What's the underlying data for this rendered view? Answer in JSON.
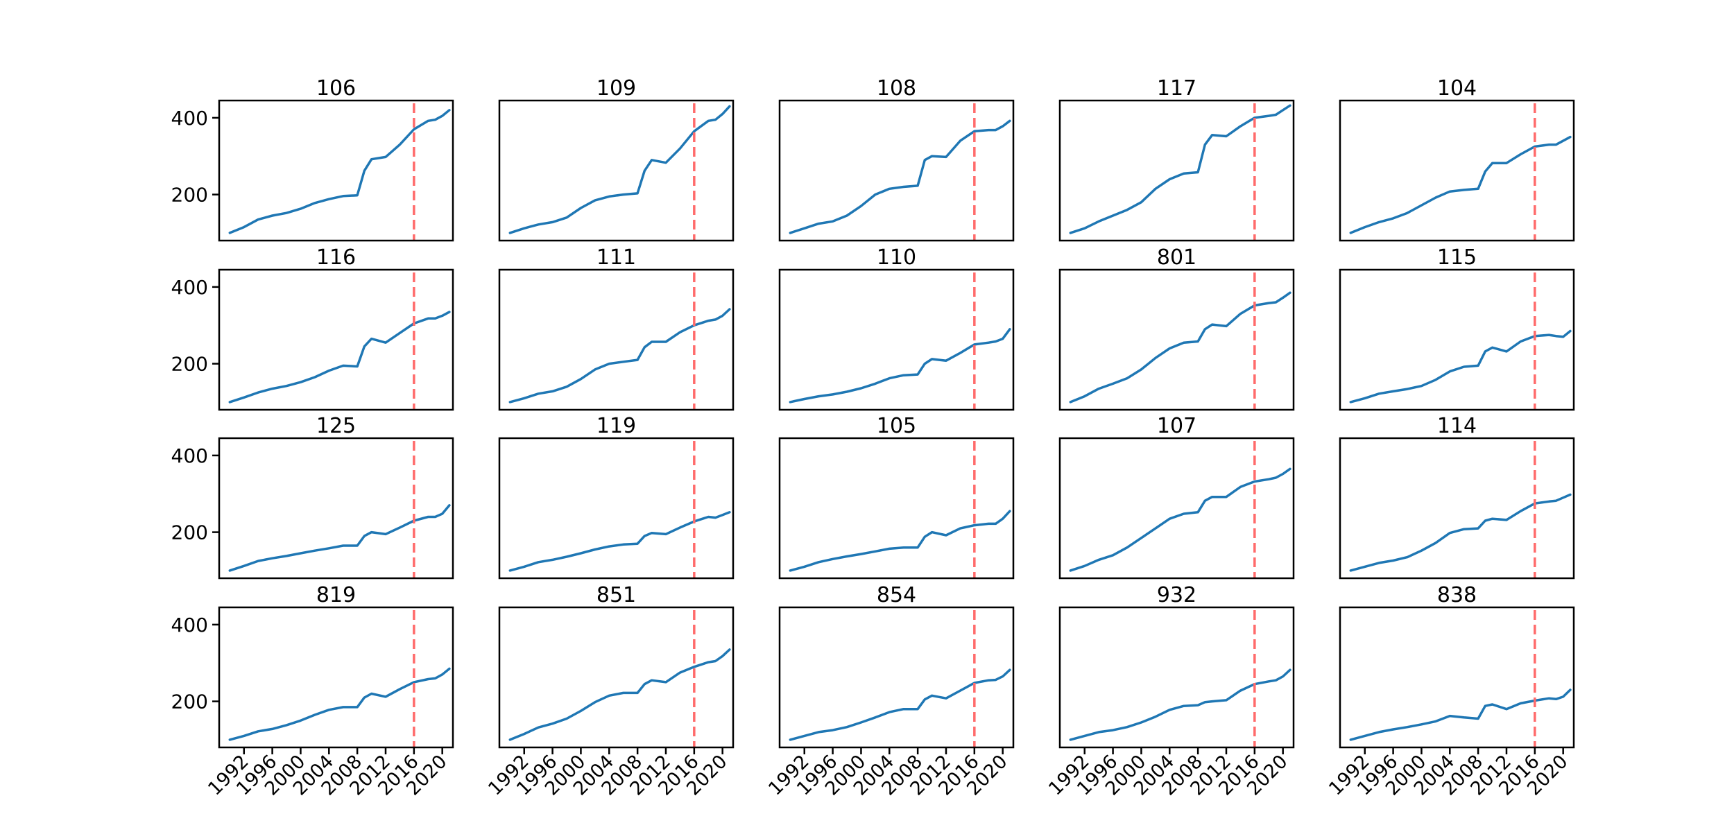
{
  "chart_data": {
    "type": "line",
    "layout": "small-multiples",
    "rows": 4,
    "cols": 5,
    "x_ticks": [
      1992,
      1996,
      2000,
      2004,
      2008,
      2012,
      2016,
      2020
    ],
    "y_ticks": [
      200,
      400
    ],
    "xlim": [
      1988.5,
      2021.5
    ],
    "ylim": [
      80,
      445
    ],
    "vline_x": 2016,
    "line_color": "#1f77b4",
    "vline_color": "#ff6b6b",
    "panels": [
      {
        "title": "106",
        "x": [
          1990,
          1992,
          1994,
          1996,
          1998,
          2000,
          2002,
          2004,
          2006,
          2008,
          2009,
          2010,
          2012,
          2014,
          2016,
          2018,
          2019,
          2020,
          2021
        ],
        "values": [
          100,
          115,
          135,
          145,
          152,
          163,
          178,
          188,
          196,
          198,
          262,
          292,
          298,
          330,
          370,
          392,
          395,
          405,
          420
        ]
      },
      {
        "title": "109",
        "x": [
          1990,
          1992,
          1994,
          1996,
          1998,
          2000,
          2002,
          2004,
          2006,
          2008,
          2009,
          2010,
          2012,
          2014,
          2016,
          2018,
          2019,
          2020,
          2021
        ],
        "values": [
          100,
          112,
          122,
          128,
          140,
          165,
          185,
          195,
          200,
          203,
          262,
          290,
          283,
          320,
          365,
          392,
          395,
          410,
          430
        ]
      },
      {
        "title": "108",
        "x": [
          1990,
          1992,
          1994,
          1996,
          1998,
          2000,
          2002,
          2004,
          2006,
          2008,
          2009,
          2010,
          2012,
          2014,
          2016,
          2018,
          2019,
          2020,
          2021
        ],
        "values": [
          100,
          112,
          124,
          130,
          145,
          170,
          200,
          215,
          220,
          223,
          290,
          300,
          298,
          340,
          365,
          368,
          368,
          378,
          392
        ]
      },
      {
        "title": "117",
        "x": [
          1990,
          1992,
          1994,
          1996,
          1998,
          2000,
          2002,
          2004,
          2006,
          2008,
          2009,
          2010,
          2012,
          2014,
          2016,
          2018,
          2019,
          2020,
          2021
        ],
        "values": [
          100,
          112,
          130,
          145,
          160,
          180,
          215,
          240,
          255,
          258,
          330,
          355,
          352,
          378,
          400,
          405,
          408,
          420,
          432
        ]
      },
      {
        "title": "104",
        "x": [
          1990,
          1992,
          1994,
          1996,
          1998,
          2000,
          2002,
          2004,
          2006,
          2008,
          2009,
          2010,
          2012,
          2014,
          2016,
          2018,
          2019,
          2020,
          2021
        ],
        "values": [
          100,
          115,
          128,
          138,
          152,
          172,
          192,
          208,
          212,
          215,
          260,
          282,
          282,
          305,
          325,
          330,
          330,
          340,
          350
        ]
      },
      {
        "title": "116",
        "x": [
          1990,
          1992,
          1994,
          1996,
          1998,
          2000,
          2002,
          2004,
          2006,
          2008,
          2009,
          2010,
          2012,
          2014,
          2016,
          2018,
          2019,
          2020,
          2021
        ],
        "values": [
          100,
          112,
          125,
          135,
          142,
          152,
          165,
          182,
          195,
          193,
          245,
          265,
          255,
          280,
          305,
          318,
          318,
          325,
          335
        ]
      },
      {
        "title": "111",
        "x": [
          1990,
          1992,
          1994,
          1996,
          1998,
          2000,
          2002,
          2004,
          2006,
          2008,
          2009,
          2010,
          2012,
          2014,
          2016,
          2018,
          2019,
          2020,
          2021
        ],
        "values": [
          100,
          110,
          122,
          128,
          140,
          160,
          185,
          200,
          205,
          210,
          243,
          257,
          257,
          282,
          300,
          312,
          315,
          325,
          342
        ]
      },
      {
        "title": "110",
        "x": [
          1990,
          1992,
          1994,
          1996,
          1998,
          2000,
          2002,
          2004,
          2006,
          2008,
          2009,
          2010,
          2012,
          2014,
          2016,
          2018,
          2019,
          2020,
          2021
        ],
        "values": [
          100,
          108,
          115,
          120,
          127,
          136,
          148,
          162,
          170,
          172,
          200,
          212,
          208,
          228,
          250,
          255,
          258,
          265,
          290
        ]
      },
      {
        "title": "801",
        "x": [
          1990,
          1992,
          1994,
          1996,
          1998,
          2000,
          2002,
          2004,
          2006,
          2008,
          2009,
          2010,
          2012,
          2014,
          2016,
          2018,
          2019,
          2020,
          2021
        ],
        "values": [
          100,
          115,
          135,
          148,
          162,
          185,
          215,
          240,
          255,
          258,
          290,
          302,
          298,
          330,
          352,
          358,
          360,
          372,
          385
        ]
      },
      {
        "title": "115",
        "x": [
          1990,
          1992,
          1994,
          1996,
          1998,
          2000,
          2002,
          2004,
          2006,
          2008,
          2009,
          2010,
          2012,
          2014,
          2016,
          2018,
          2019,
          2020,
          2021
        ],
        "values": [
          100,
          110,
          122,
          128,
          134,
          142,
          158,
          180,
          192,
          195,
          232,
          242,
          232,
          258,
          272,
          275,
          272,
          270,
          285
        ]
      },
      {
        "title": "125",
        "x": [
          1990,
          1992,
          1994,
          1996,
          1998,
          2000,
          2002,
          2004,
          2006,
          2008,
          2009,
          2010,
          2012,
          2014,
          2016,
          2018,
          2019,
          2020,
          2021
        ],
        "values": [
          100,
          112,
          125,
          132,
          138,
          145,
          152,
          158,
          165,
          165,
          190,
          200,
          195,
          212,
          230,
          240,
          240,
          248,
          270
        ]
      },
      {
        "title": "119",
        "x": [
          1990,
          1992,
          1994,
          1996,
          1998,
          2000,
          2002,
          2004,
          2006,
          2008,
          2009,
          2010,
          2012,
          2014,
          2016,
          2018,
          2019,
          2020,
          2021
        ],
        "values": [
          100,
          110,
          122,
          128,
          136,
          145,
          155,
          163,
          168,
          170,
          190,
          198,
          195,
          212,
          228,
          240,
          238,
          245,
          252
        ]
      },
      {
        "title": "105",
        "x": [
          1990,
          1992,
          1994,
          1996,
          1998,
          2000,
          2002,
          2004,
          2006,
          2008,
          2009,
          2010,
          2012,
          2014,
          2016,
          2018,
          2019,
          2020,
          2021
        ],
        "values": [
          100,
          110,
          122,
          130,
          137,
          143,
          150,
          157,
          160,
          160,
          188,
          200,
          192,
          210,
          218,
          222,
          222,
          235,
          255
        ]
      },
      {
        "title": "107",
        "x": [
          1990,
          1992,
          1994,
          1996,
          1998,
          2000,
          2002,
          2004,
          2006,
          2008,
          2009,
          2010,
          2012,
          2014,
          2016,
          2018,
          2019,
          2020,
          2021
        ],
        "values": [
          100,
          112,
          128,
          140,
          160,
          185,
          210,
          235,
          248,
          252,
          282,
          292,
          292,
          318,
          332,
          338,
          342,
          352,
          365
        ]
      },
      {
        "title": "114",
        "x": [
          1990,
          1992,
          1994,
          1996,
          1998,
          2000,
          2002,
          2004,
          2006,
          2008,
          2009,
          2010,
          2012,
          2014,
          2016,
          2018,
          2019,
          2020,
          2021
        ],
        "values": [
          100,
          110,
          120,
          126,
          135,
          152,
          172,
          198,
          208,
          210,
          230,
          235,
          232,
          255,
          275,
          280,
          282,
          290,
          298
        ]
      },
      {
        "title": "819",
        "x": [
          1990,
          1992,
          1994,
          1996,
          1998,
          2000,
          2002,
          2004,
          2006,
          2008,
          2009,
          2010,
          2012,
          2014,
          2016,
          2018,
          2019,
          2020,
          2021
        ],
        "values": [
          100,
          110,
          122,
          128,
          138,
          150,
          165,
          178,
          185,
          185,
          210,
          220,
          212,
          232,
          250,
          258,
          260,
          270,
          285
        ]
      },
      {
        "title": "851",
        "x": [
          1990,
          1992,
          1994,
          1996,
          1998,
          2000,
          2002,
          2004,
          2006,
          2008,
          2009,
          2010,
          2012,
          2014,
          2016,
          2018,
          2019,
          2020,
          2021
        ],
        "values": [
          100,
          115,
          132,
          142,
          155,
          175,
          198,
          215,
          222,
          222,
          245,
          255,
          250,
          275,
          290,
          302,
          305,
          318,
          335
        ]
      },
      {
        "title": "854",
        "x": [
          1990,
          1992,
          1994,
          1996,
          1998,
          2000,
          2002,
          2004,
          2006,
          2008,
          2009,
          2010,
          2012,
          2014,
          2016,
          2018,
          2019,
          2020,
          2021
        ],
        "values": [
          100,
          110,
          120,
          125,
          133,
          145,
          158,
          172,
          180,
          180,
          205,
          215,
          208,
          228,
          248,
          255,
          256,
          265,
          282
        ]
      },
      {
        "title": "932",
        "x": [
          1990,
          1992,
          1994,
          1996,
          1998,
          2000,
          2002,
          2004,
          2006,
          2008,
          2009,
          2010,
          2012,
          2014,
          2016,
          2018,
          2019,
          2020,
          2021
        ],
        "values": [
          100,
          110,
          120,
          125,
          133,
          145,
          160,
          178,
          188,
          190,
          198,
          200,
          203,
          228,
          245,
          252,
          255,
          265,
          282
        ]
      },
      {
        "title": "838",
        "x": [
          1990,
          1992,
          1994,
          1996,
          1998,
          2000,
          2002,
          2004,
          2006,
          2008,
          2009,
          2010,
          2012,
          2014,
          2016,
          2018,
          2019,
          2020,
          2021
        ],
        "values": [
          100,
          110,
          120,
          127,
          133,
          140,
          148,
          162,
          158,
          155,
          188,
          192,
          180,
          195,
          202,
          208,
          206,
          212,
          230
        ]
      }
    ]
  }
}
